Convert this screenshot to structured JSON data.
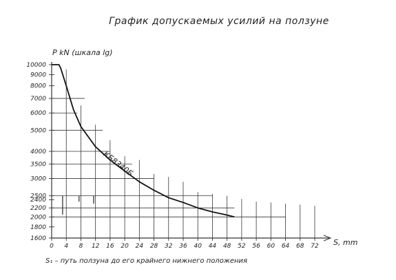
{
  "chart_data": {
    "type": "line",
    "title": "График допускаемых усилий на ползуне",
    "ylabel": "P kN (шкала lg)",
    "xlabel": "S, mm",
    "caption": "S₁ – путь ползуна до его крайнего нижнего положения",
    "y_scale": "log",
    "ylim": [
      1600,
      10000
    ],
    "xlim": [
      0,
      72
    ],
    "x_ticks": [
      0,
      4,
      8,
      12,
      16,
      20,
      24,
      28,
      32,
      36,
      40,
      44,
      48,
      52,
      56,
      60,
      64,
      68,
      72
    ],
    "x_tick_labels": [
      "0",
      "4",
      "8",
      "12",
      "16",
      "20",
      "24",
      "28",
      "32",
      "36",
      "40",
      "44",
      "48",
      "52",
      "56",
      "60",
      "64",
      "68",
      "72"
    ],
    "y_ticks": [
      1600,
      1800,
      2000,
      2200,
      2400,
      2500,
      3000,
      3500,
      4000,
      5000,
      6000,
      7000,
      8000,
      9000,
      10000
    ],
    "y_tick_labels": [
      "1600",
      "1800",
      "2000",
      "2200",
      "2400",
      "2500",
      "3000",
      "3500",
      "4000",
      "5000",
      "6000",
      "7000",
      "8000",
      "9000",
      "10000"
    ],
    "series": [
      {
        "name": "КБ8340Б",
        "x": [
          0,
          2,
          2.5,
          4,
          6,
          8,
          12,
          16,
          20,
          24,
          28,
          32,
          36,
          40,
          44,
          48,
          50
        ],
        "y": [
          10000,
          10000,
          9600,
          8000,
          6200,
          5200,
          4200,
          3650,
          3250,
          2900,
          2650,
          2450,
          2330,
          2200,
          2110,
          2040,
          2000
        ]
      }
    ],
    "grid_verticals": [
      {
        "x": 4,
        "top": 9500
      },
      {
        "x": 8,
        "top": 6500
      },
      {
        "x": 12,
        "top": 5300
      },
      {
        "x": 16,
        "top": 4500
      },
      {
        "x": 20,
        "top": 3800
      },
      {
        "x": 24,
        "top": 3650
      },
      {
        "x": 28,
        "top": 3150
      },
      {
        "x": 32,
        "top": 3050
      },
      {
        "x": 36,
        "top": 2900
      },
      {
        "x": 40,
        "top": 2600
      },
      {
        "x": 44,
        "top": 2550
      },
      {
        "x": 48,
        "top": 2500
      },
      {
        "x": 52,
        "top": 2420
      },
      {
        "x": 56,
        "top": 2350
      },
      {
        "x": 60,
        "top": 2330
      },
      {
        "x": 64,
        "top": 2300
      },
      {
        "x": 68,
        "top": 2280
      },
      {
        "x": 72,
        "top": 2250
      }
    ],
    "grid_horizontals": [
      {
        "y": 7000,
        "x_end": 9
      },
      {
        "y": 6000,
        "x_end": 7
      },
      {
        "y": 5000,
        "x_end": 14
      },
      {
        "y": 4000,
        "x_end": 16
      },
      {
        "y": 3500,
        "x_end": 22
      },
      {
        "y": 3000,
        "x_end": 28
      },
      {
        "y": 2500,
        "x_end": 44
      },
      {
        "y": 2200,
        "x_end": 50
      },
      {
        "y": 2000,
        "x_end": 64
      }
    ],
    "marker_lines": [
      {
        "x": 3,
        "y_top": 2500,
        "y_bottom": 2050
      },
      {
        "x": 7.5,
        "y_top": 2500,
        "y_bottom": 2350
      },
      {
        "x": 11.5,
        "y_top": 2500,
        "y_bottom": 2300
      }
    ]
  }
}
